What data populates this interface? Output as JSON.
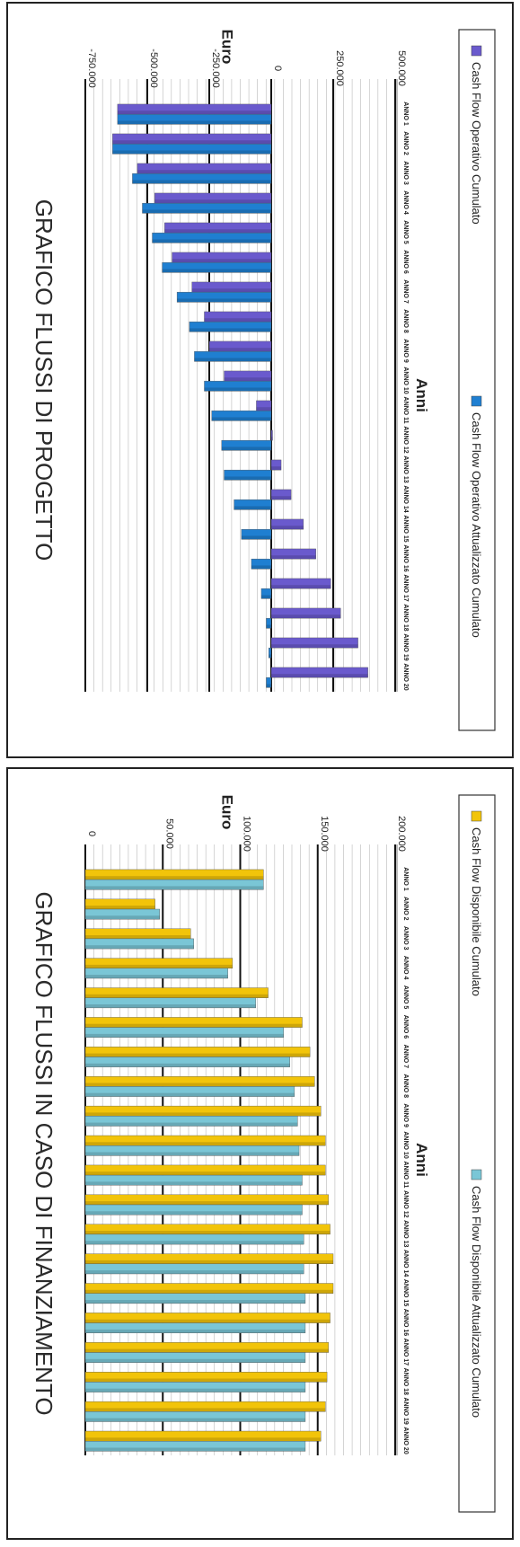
{
  "chart_data": [
    {
      "type": "bar",
      "title": "GRAFICO FLUSSI DI PROGETTO",
      "xlabel": "Anni",
      "ylabel": "Euro",
      "categories": [
        "ANNO 1",
        "ANNO 2",
        "ANNO 3",
        "ANNO 4",
        "ANNO 5",
        "ANNO 6",
        "ANNO 7",
        "ANNO 8",
        "ANNO 9",
        "ANNO 10",
        "ANNO 11",
        "ANNO 12",
        "ANNO 13",
        "ANNO 14",
        "ANNO 15",
        "ANNO 16",
        "ANNO 17",
        "ANNO 18",
        "ANNO 19",
        "ANNO 20"
      ],
      "yticks": [
        "-750.000",
        "-500.000",
        "-250.000",
        "0",
        "250.000",
        "500.000"
      ],
      "ylim": [
        -750000,
        500000
      ],
      "series": [
        {
          "name": "Cash Flow Operativo Cumulato",
          "color": "#6a5acd",
          "values": [
            -620000,
            -640000,
            -540000,
            -470000,
            -430000,
            -400000,
            -320000,
            -270000,
            -250000,
            -190000,
            -60000,
            0,
            40000,
            80000,
            130000,
            180000,
            240000,
            280000,
            350000,
            390000
          ]
        },
        {
          "name": "Cash Flow Operativo Attualizzato Cumulato",
          "color": "#1f7fd1",
          "values": [
            -620000,
            -640000,
            -560000,
            -520000,
            -480000,
            -440000,
            -380000,
            -330000,
            -310000,
            -270000,
            -240000,
            -200000,
            -190000,
            -150000,
            -120000,
            -80000,
            -40000,
            -20000,
            -10000,
            -20000
          ]
        }
      ],
      "grid": true,
      "legend_position": "bottom"
    },
    {
      "type": "bar",
      "title": "GRAFICO FLUSSI IN CASO DI FINANZIAMENTO",
      "xlabel": "Anni",
      "ylabel": "Euro",
      "categories": [
        "ANNO 1",
        "ANNO 2",
        "ANNO 3",
        "ANNO 4",
        "ANNO 5",
        "ANNO 6",
        "ANNO 7",
        "ANNO 8",
        "ANNO 9",
        "ANNO 10",
        "ANNO 11",
        "ANNO 12",
        "ANNO 13",
        "ANNO 14",
        "ANNO 15",
        "ANNO 16",
        "ANNO 17",
        "ANNO 18",
        "ANNO 19",
        "ANNO 20"
      ],
      "yticks": [
        "0",
        "50.000",
        "100.000",
        "150.000",
        "200.000"
      ],
      "ylim": [
        0,
        200000
      ],
      "series": [
        {
          "name": "Cash Flow Disponibile Cumulato",
          "color": "#f2c40a",
          "values": [
            115000,
            45000,
            68000,
            95000,
            118000,
            140000,
            145000,
            148000,
            152000,
            155000,
            155000,
            157000,
            158000,
            160000,
            160000,
            158000,
            157000,
            156000,
            155000,
            152000
          ]
        },
        {
          "name": "Cash Flow Disponibile Attualizzato Cumulato",
          "color": "#7ac6d6",
          "values": [
            115000,
            48000,
            70000,
            92000,
            110000,
            128000,
            132000,
            135000,
            137000,
            138000,
            140000,
            140000,
            141000,
            141000,
            142000,
            142000,
            142000,
            142000,
            142000,
            142000
          ]
        }
      ],
      "grid": true,
      "legend_position": "bottom"
    }
  ]
}
